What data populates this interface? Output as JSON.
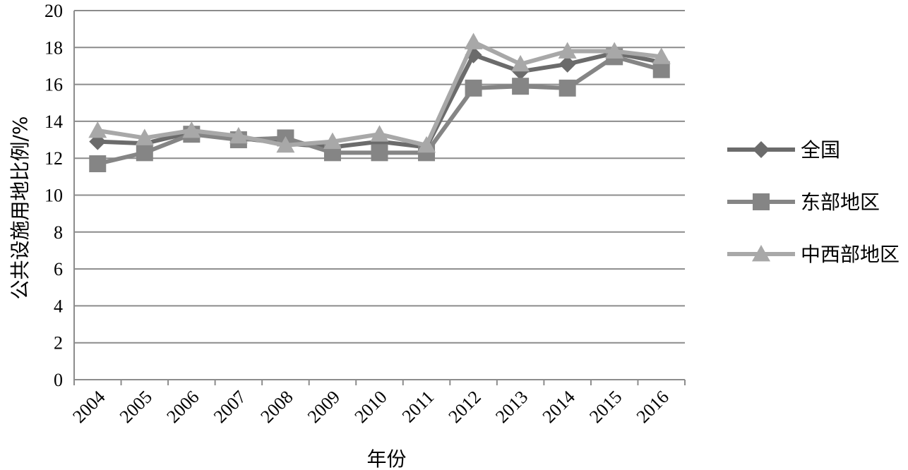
{
  "chart_data": {
    "type": "line",
    "title": "",
    "xlabel": "年份",
    "ylabel": "公共设施用地比例/%",
    "ylim": [
      0,
      20
    ],
    "yticks": [
      0,
      2,
      4,
      6,
      8,
      10,
      12,
      14,
      16,
      18,
      20
    ],
    "grid": true,
    "legend_position": "right",
    "categories": [
      "2004",
      "2005",
      "2006",
      "2007",
      "2008",
      "2009",
      "2010",
      "2011",
      "2012",
      "2013",
      "2014",
      "2015",
      "2016"
    ],
    "series": [
      {
        "name": "全国",
        "marker": "diamond",
        "color": "#6b6b6b",
        "values": [
          12.9,
          12.8,
          13.4,
          13.1,
          12.8,
          12.6,
          12.9,
          12.6,
          17.6,
          16.7,
          17.1,
          17.7,
          17.2
        ]
      },
      {
        "name": "东部地区",
        "marker": "square",
        "color": "#858585",
        "values": [
          11.7,
          12.3,
          13.3,
          13.0,
          13.1,
          12.3,
          12.3,
          12.3,
          15.8,
          15.9,
          15.8,
          17.5,
          16.8
        ]
      },
      {
        "name": "中西部地区",
        "marker": "triangle",
        "color": "#a8a8a8",
        "values": [
          13.5,
          13.1,
          13.5,
          13.2,
          12.7,
          12.9,
          13.3,
          12.7,
          18.3,
          17.1,
          17.8,
          17.8,
          17.5
        ]
      }
    ]
  }
}
